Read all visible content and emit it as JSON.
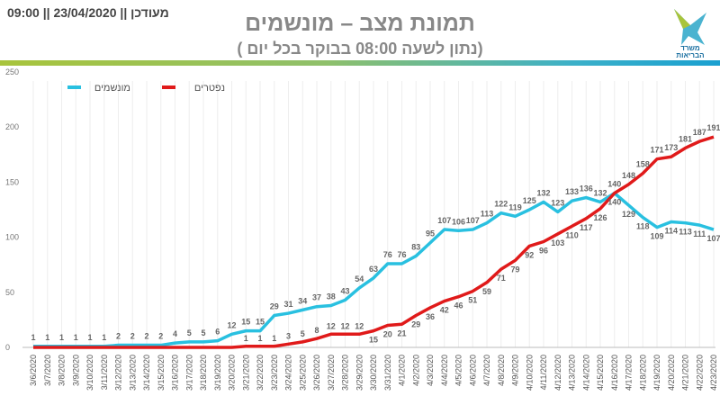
{
  "header": {
    "updated": "מעודכן || 23/04/2020 || 09:00",
    "title": "תמונת מצב – מונשמים",
    "subtitle": "( נתון לשעה 08:00 בבוקר בכל יום)",
    "logo_text": [
      "משרד",
      "הבריאות"
    ]
  },
  "chart_data": {
    "type": "line",
    "title": "תמונת מצב – מונשמים",
    "ylim": [
      0,
      250
    ],
    "yticks": [
      0,
      50,
      100,
      150,
      200,
      250
    ],
    "legend_position": "top-left",
    "x": [
      "3/6/2020",
      "3/7/2020",
      "3/8/2020",
      "3/9/2020",
      "3/10/2020",
      "3/11/2020",
      "3/12/2020",
      "3/13/2020",
      "3/14/2020",
      "3/15/2020",
      "3/16/2020",
      "3/17/2020",
      "3/18/2020",
      "3/19/2020",
      "3/20/2020",
      "3/21/2020",
      "3/22/2020",
      "3/23/2020",
      "3/24/2020",
      "3/25/2020",
      "3/26/2020",
      "3/27/2020",
      "3/28/2020",
      "3/29/2020",
      "3/30/2020",
      "3/31/2020",
      "4/1/2020",
      "4/2/2020",
      "4/3/2020",
      "4/4/2020",
      "4/5/2020",
      "4/6/2020",
      "4/7/2020",
      "4/8/2020",
      "4/9/2020",
      "4/10/2020",
      "4/11/2020",
      "4/12/2020",
      "4/13/2020",
      "4/14/2020",
      "4/15/2020",
      "4/16/2020",
      "4/17/2020",
      "4/18/2020",
      "4/19/2020",
      "4/20/2020",
      "4/21/2020",
      "4/22/2020",
      "4/23/2020"
    ],
    "series": [
      {
        "name": "מונשמים",
        "color": "#29c0e0",
        "label_from": 0,
        "values": [
          1,
          1,
          1,
          1,
          1,
          1,
          2,
          2,
          2,
          2,
          4,
          5,
          5,
          6,
          12,
          15,
          15,
          29,
          31,
          34,
          37,
          38,
          43,
          54,
          63,
          76,
          76,
          83,
          95,
          107,
          106,
          107,
          113,
          122,
          119,
          125,
          132,
          123,
          133,
          136,
          132,
          140,
          129,
          118,
          109,
          114,
          113,
          111,
          107
        ]
      },
      {
        "name": "נפטרים",
        "color": "#e01a1a",
        "label_from": 15,
        "values": [
          0,
          0,
          0,
          0,
          0,
          0,
          0,
          0,
          0,
          0,
          0,
          0,
          0,
          0,
          0,
          1,
          1,
          1,
          3,
          5,
          8,
          12,
          12,
          12,
          15,
          20,
          21,
          29,
          36,
          42,
          46,
          51,
          59,
          71,
          79,
          92,
          96,
          103,
          110,
          117,
          126,
          140,
          148,
          158,
          171,
          173,
          181,
          187,
          191
        ]
      }
    ]
  }
}
